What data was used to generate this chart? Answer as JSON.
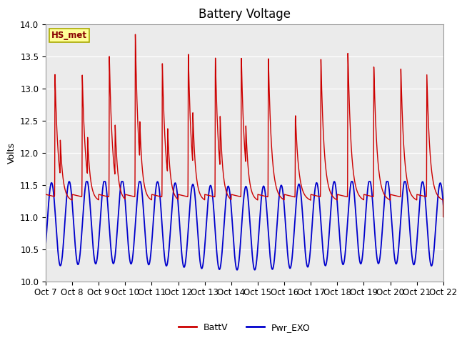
{
  "title": "Battery Voltage",
  "ylabel": "Volts",
  "ylim": [
    10.0,
    14.0
  ],
  "yticks": [
    10.0,
    10.5,
    11.0,
    11.5,
    12.0,
    12.5,
    13.0,
    13.5,
    14.0
  ],
  "x_tick_labels": [
    "Oct 7",
    "Oct 8",
    "Oct 9",
    "Oct 10",
    "Oct 11",
    "Oct 12",
    "Oct 13",
    "Oct 14",
    "Oct 15",
    "Oct 16",
    "Oct 17",
    "Oct 18",
    "Oct 19",
    "Oct 20",
    "Oct 21",
    "Oct 22"
  ],
  "batt_color": "#cc0000",
  "pwr_color": "#0000cc",
  "axes_bg_color": "#ebebeb",
  "annotation_text": "HS_met",
  "annotation_bg": "#ffff99",
  "annotation_border": "#aaaa00",
  "legend_labels": [
    "BattV",
    "Pwr_EXO"
  ],
  "title_fontsize": 12,
  "axis_label_fontsize": 9,
  "tick_fontsize": 8.5
}
